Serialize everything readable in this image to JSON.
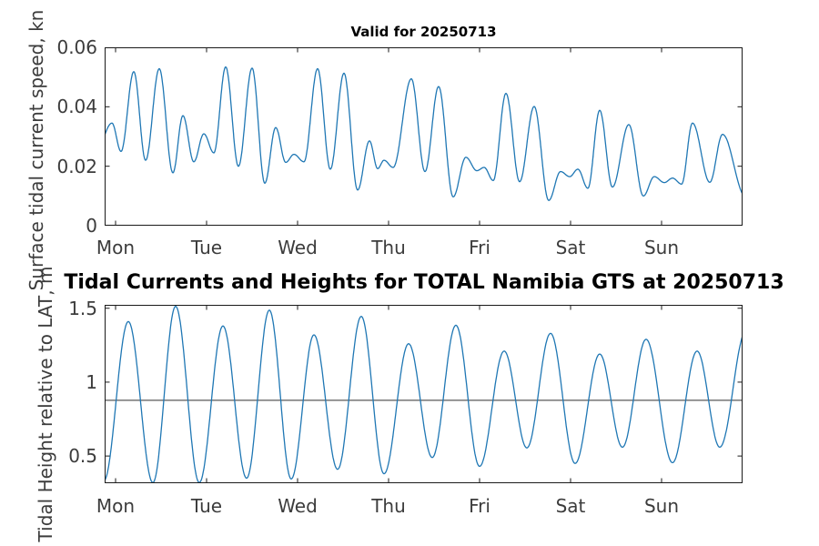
{
  "figure": {
    "top_subtitle": "Valid for 20250713",
    "main_title": "Tidal Currents and Heights for TOTAL Namibia GTS at 20250713"
  },
  "chart_data": [
    {
      "type": "line",
      "title": "Valid for 20250713",
      "ylabel": "Surface tidal current speed, kn",
      "xlabel": "",
      "xticklabels": [
        "Mon",
        "Tue",
        "Wed",
        "Thu",
        "Fri",
        "Sat",
        "Sun"
      ],
      "yticks": [
        {
          "value": 0,
          "label": "0"
        },
        {
          "value": 0.02,
          "label": "0.02"
        },
        {
          "value": 0.04,
          "label": "0.04"
        },
        {
          "value": 0.06,
          "label": "0.06"
        }
      ],
      "ylim": [
        0,
        0.06
      ],
      "xlim_days": [
        -0.12,
        6.89
      ],
      "grid": false,
      "legend": false,
      "line_color": "#1f77b4",
      "interpolation": "half-cosine-through-extrema",
      "points_format": [
        "t_days_from_Mon_0000",
        "speed_kn"
      ],
      "series": [
        {
          "name": "surface-tidal-current-speed",
          "points": [
            [
              -0.22,
              0.0245
            ],
            [
              -0.04,
              0.0345
            ],
            [
              0.06,
              0.025
            ],
            [
              0.2,
              0.0518
            ],
            [
              0.33,
              0.022
            ],
            [
              0.48,
              0.0528
            ],
            [
              0.63,
              0.0178
            ],
            [
              0.74,
              0.037
            ],
            [
              0.86,
              0.0215
            ],
            [
              0.97,
              0.0309
            ],
            [
              1.08,
              0.0245
            ],
            [
              1.21,
              0.0534
            ],
            [
              1.35,
              0.02
            ],
            [
              1.5,
              0.053
            ],
            [
              1.64,
              0.0143
            ],
            [
              1.76,
              0.033
            ],
            [
              1.87,
              0.0213
            ],
            [
              1.96,
              0.024
            ],
            [
              2.07,
              0.0215
            ],
            [
              2.22,
              0.0528
            ],
            [
              2.36,
              0.019
            ],
            [
              2.51,
              0.0513
            ],
            [
              2.66,
              0.012
            ],
            [
              2.79,
              0.0285
            ],
            [
              2.88,
              0.0192
            ],
            [
              2.95,
              0.022
            ],
            [
              3.05,
              0.0196
            ],
            [
              3.25,
              0.0494
            ],
            [
              3.4,
              0.0182
            ],
            [
              3.55,
              0.0468
            ],
            [
              3.71,
              0.0097
            ],
            [
              3.85,
              0.023
            ],
            [
              3.97,
              0.0185
            ],
            [
              4.05,
              0.0196
            ],
            [
              4.15,
              0.0152
            ],
            [
              4.29,
              0.0445
            ],
            [
              4.44,
              0.0148
            ],
            [
              4.6,
              0.0401
            ],
            [
              4.76,
              0.0085
            ],
            [
              4.89,
              0.0182
            ],
            [
              4.99,
              0.0165
            ],
            [
              5.08,
              0.019
            ],
            [
              5.19,
              0.0126
            ],
            [
              5.32,
              0.0388
            ],
            [
              5.46,
              0.013
            ],
            [
              5.64,
              0.034
            ],
            [
              5.8,
              0.01
            ],
            [
              5.92,
              0.0165
            ],
            [
              6.03,
              0.0145
            ],
            [
              6.12,
              0.016
            ],
            [
              6.22,
              0.014
            ],
            [
              6.34,
              0.0345
            ],
            [
              6.53,
              0.0146
            ],
            [
              6.67,
              0.0307
            ],
            [
              6.92,
              0.01
            ]
          ]
        }
      ]
    },
    {
      "type": "line",
      "title": "Tidal Currents and Heights for TOTAL Namibia GTS at 20250713",
      "ylabel": "Tidal Height relative to LAT, m",
      "xlabel": "",
      "xticklabels": [
        "Mon",
        "Tue",
        "Wed",
        "Thu",
        "Fri",
        "Sat",
        "Sun"
      ],
      "yticks": [
        {
          "value": 0.5,
          "label": "0.5"
        },
        {
          "value": 1,
          "label": "1"
        },
        {
          "value": 1.5,
          "label": "1.5"
        }
      ],
      "ylim": [
        0.316,
        1.523
      ],
      "xlim_days": [
        -0.12,
        6.89
      ],
      "grid": false,
      "legend": false,
      "line_color": "#1f77b4",
      "ref_line": {
        "value": 0.877,
        "color": "#595959",
        "name": "mean-level-line"
      },
      "interpolation": "half-cosine-through-extrema",
      "points_format": [
        "t_days_from_Mon_0000",
        "height_m"
      ],
      "series": [
        {
          "name": "tidal-height",
          "points": [
            [
              -0.13,
              0.33
            ],
            [
              0.14,
              1.41
            ],
            [
              0.41,
              0.32
            ],
            [
              0.66,
              1.513
            ],
            [
              0.92,
              0.32
            ],
            [
              1.18,
              1.38
            ],
            [
              1.44,
              0.35
            ],
            [
              1.69,
              1.487
            ],
            [
              1.93,
              0.345
            ],
            [
              2.18,
              1.32
            ],
            [
              2.44,
              0.41
            ],
            [
              2.7,
              1.445
            ],
            [
              2.95,
              0.38
            ],
            [
              3.22,
              1.26
            ],
            [
              3.48,
              0.49
            ],
            [
              3.74,
              1.385
            ],
            [
              4.0,
              0.43
            ],
            [
              4.27,
              1.21
            ],
            [
              4.52,
              0.555
            ],
            [
              4.78,
              1.33
            ],
            [
              5.05,
              0.45
            ],
            [
              5.32,
              1.19
            ],
            [
              5.57,
              0.56
            ],
            [
              5.83,
              1.29
            ],
            [
              6.12,
              0.455
            ],
            [
              6.39,
              1.21
            ],
            [
              6.64,
              0.56
            ],
            [
              6.93,
              1.35
            ]
          ]
        }
      ]
    }
  ],
  "style": {
    "axis_color": "#1a1a1a",
    "tick_label_color": "#3c3c3c",
    "title_color": "#000000",
    "background": "#ffffff"
  }
}
